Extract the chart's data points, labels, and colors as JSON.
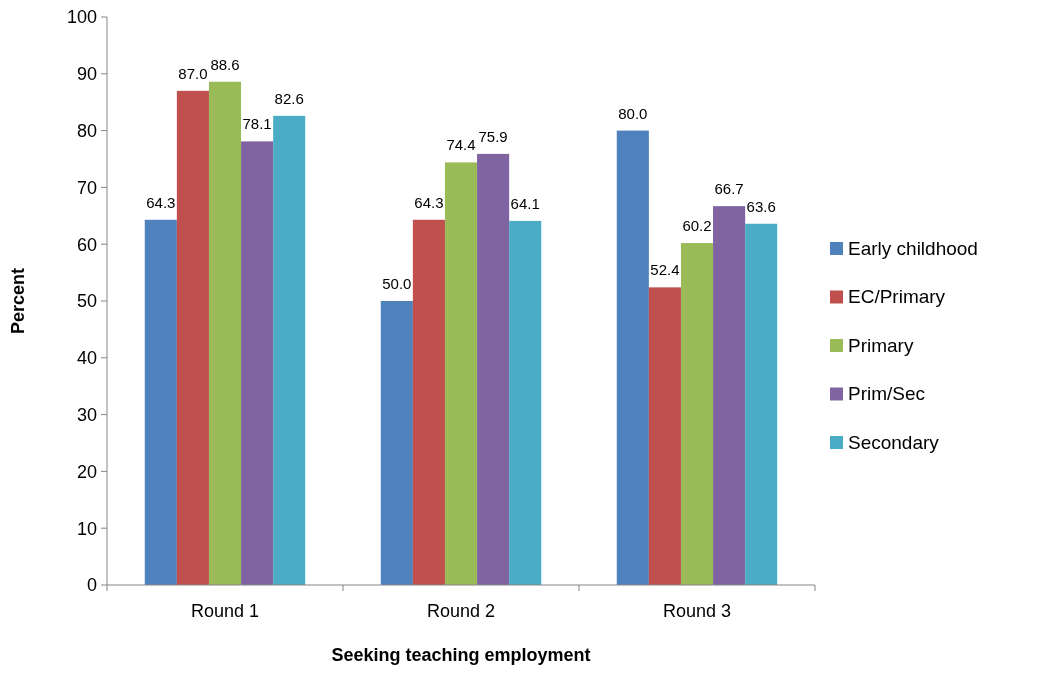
{
  "chart_data": {
    "type": "bar",
    "xlabel": "Seeking teaching employment",
    "ylabel": "Percent",
    "categories": [
      "Round 1",
      "Round 2",
      "Round 3"
    ],
    "series": [
      {
        "name": "Early childhood",
        "color": "#4f81bd",
        "values": [
          64.3,
          50.0,
          80.0
        ],
        "value_labels": [
          "64.3",
          "50.0",
          "80.0"
        ]
      },
      {
        "name": "EC/Primary",
        "color": "#c0504d",
        "values": [
          87.0,
          64.3,
          52.4
        ],
        "value_labels": [
          "87.0",
          "64.3",
          "52.4"
        ]
      },
      {
        "name": "Primary",
        "color": "#9bbb59",
        "values": [
          88.6,
          74.4,
          60.2
        ],
        "value_labels": [
          "88.6",
          "74.4",
          "60.2"
        ]
      },
      {
        "name": "Prim/Sec",
        "color": "#8064a2",
        "values": [
          78.1,
          75.9,
          66.7
        ],
        "value_labels": [
          "78.1",
          "75.9",
          "66.7"
        ]
      },
      {
        "name": "Secondary",
        "color": "#4bacc6",
        "values": [
          82.6,
          64.1,
          63.6
        ],
        "value_labels": [
          "82.6",
          "64.1",
          "63.6"
        ]
      }
    ],
    "ylim": [
      0,
      100
    ],
    "yticks": [
      0,
      10,
      20,
      30,
      40,
      50,
      60,
      70,
      80,
      90,
      100
    ],
    "grid": false,
    "legend": "right"
  }
}
